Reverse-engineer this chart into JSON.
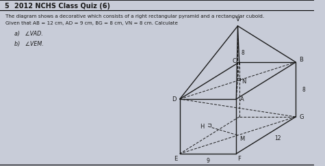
{
  "title_num": "5",
  "title_text": "2012 NCHS Class Quiz (6)",
  "line1": "The diagram shows a decorative which consists of a right rectangular pyramid and a rectangular cuboid.",
  "line2": "Given that AB = 12 cm, AD = 9 cm, BG = 8 cm, VN = 8 cm. Calculate",
  "part_a": "a)   ∠VAD.",
  "part_b": "b)   ∠VEM.",
  "bg_color": "#c8ccd8",
  "paper_color": "#dde0ea",
  "text_color": "#222222",
  "dim_8_top": "8",
  "dim_8_right": "8",
  "dim_12": "12",
  "dim_9": "9"
}
